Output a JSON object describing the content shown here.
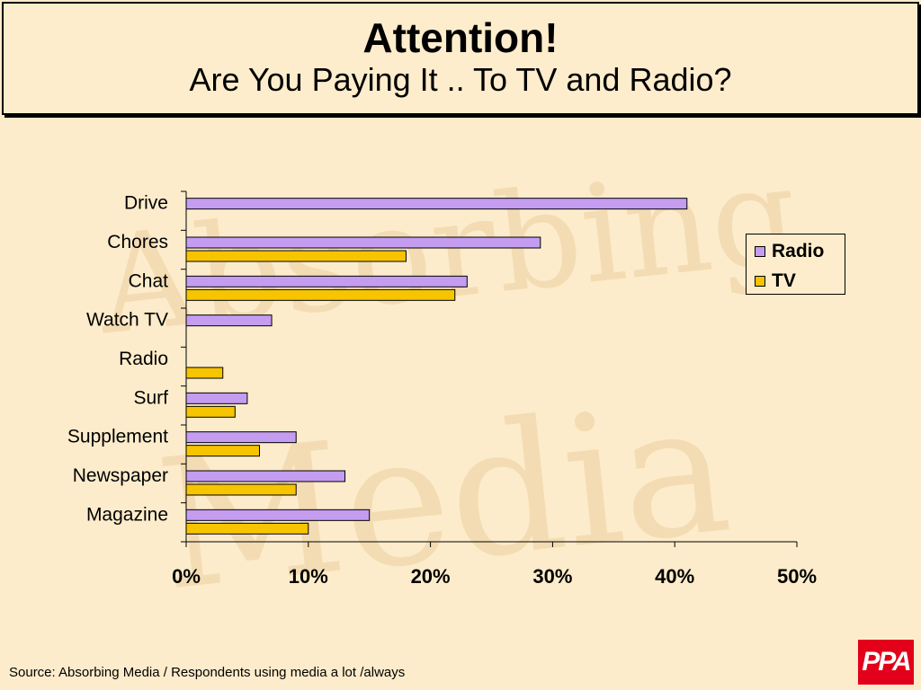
{
  "slide": {
    "title": "Attention!",
    "subtitle": "Are You Paying It .. To TV and Radio?",
    "source": "Source: Absorbing Media / Respondents using media a lot /always",
    "logo": "PPA",
    "watermark": "Absorbing Media",
    "background_color": "#fdeccb"
  },
  "chart_data": {
    "type": "bar",
    "orientation": "horizontal",
    "categories": [
      "Drive",
      "Chores",
      "Chat",
      "Watch TV",
      "Radio",
      "Surf",
      "Supplement",
      "Newspaper",
      "Magazine"
    ],
    "series": [
      {
        "name": "Radio",
        "color": "#c49cf0",
        "values": [
          41,
          29,
          23,
          7,
          null,
          5,
          9,
          13,
          15
        ]
      },
      {
        "name": "TV",
        "color": "#f7c400",
        "values": [
          null,
          18,
          22,
          null,
          3,
          4,
          6,
          9,
          10
        ]
      }
    ],
    "xlim": [
      0,
      50
    ],
    "xticks": [
      "0%",
      "10%",
      "20%",
      "30%",
      "40%",
      "50%"
    ],
    "unit": "%",
    "grid": false,
    "legend_position": "right"
  }
}
